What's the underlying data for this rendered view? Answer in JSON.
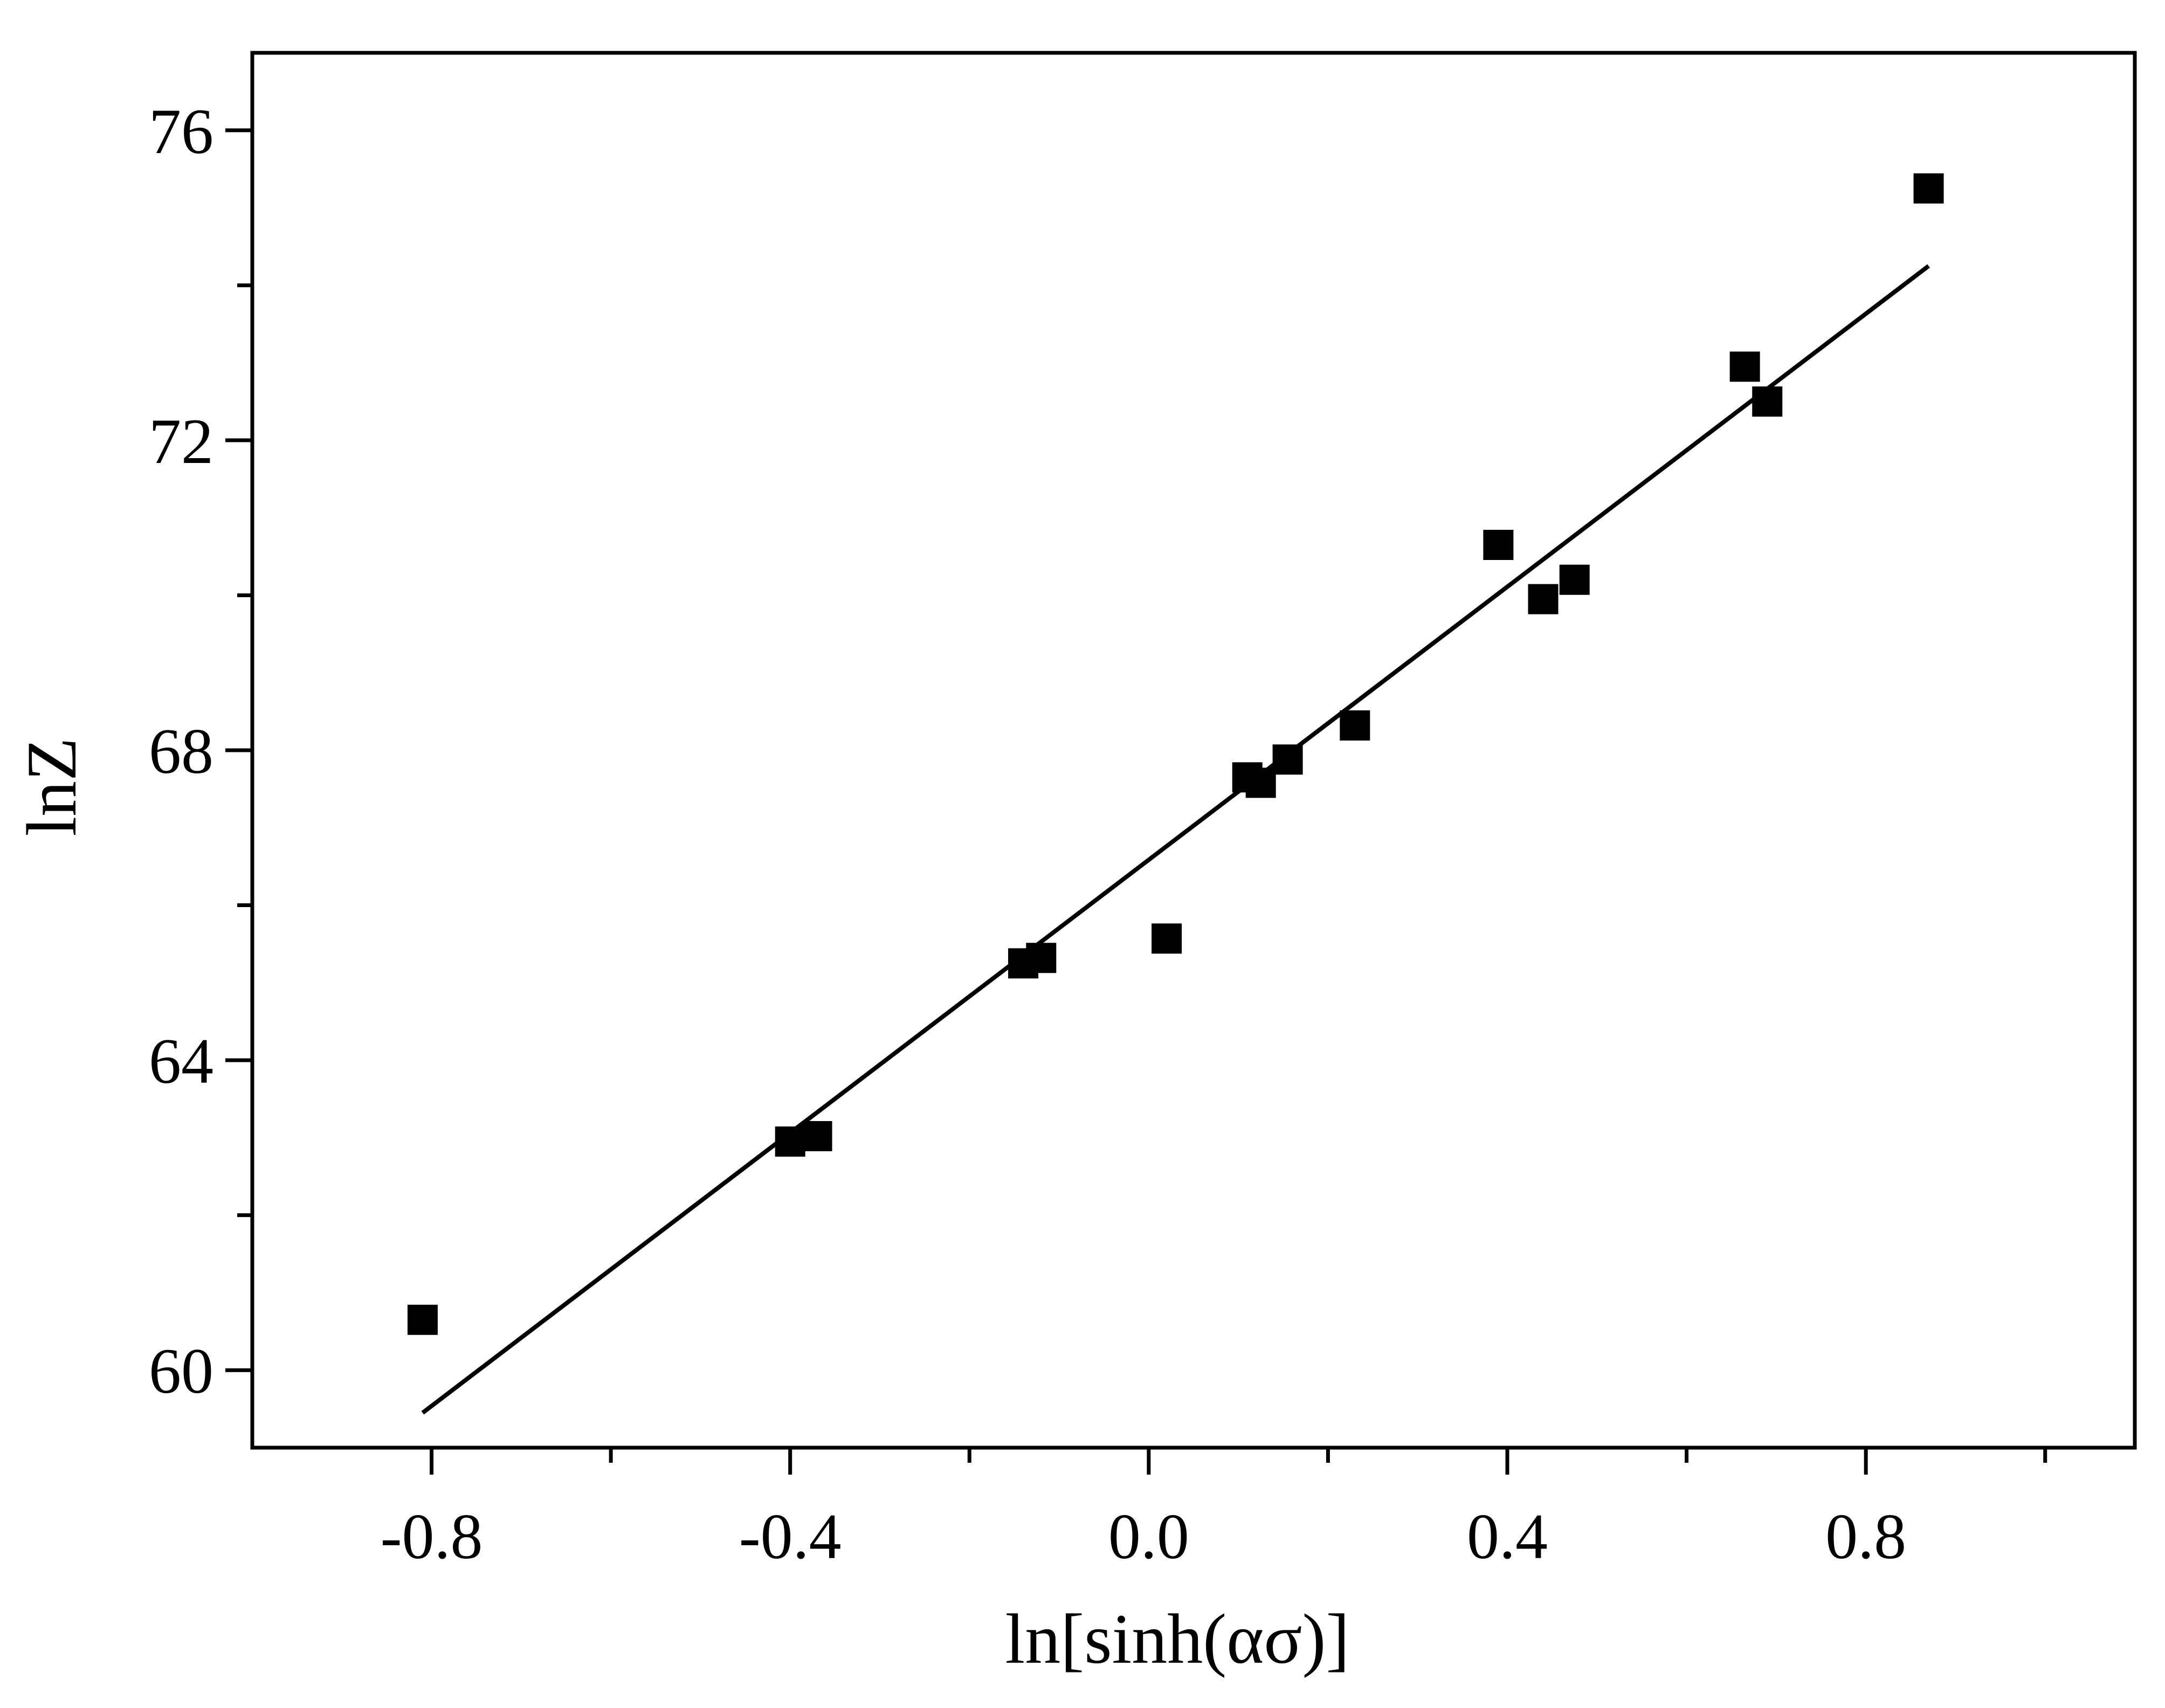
{
  "chart_data": {
    "type": "scatter",
    "title": "",
    "xlabel": "ln[sinh(ασ)]",
    "ylabel": "lnZ",
    "xlim": [
      -1.0,
      1.1
    ],
    "ylim": [
      59.0,
      77.0
    ],
    "x_ticks": [
      -0.8,
      -0.4,
      0.0,
      0.4,
      0.8
    ],
    "x_tick_labels": [
      "-0.8",
      "-0.4",
      "0.0",
      "0.4",
      "0.8"
    ],
    "x_minor_ticks": [
      -0.6,
      -0.2,
      0.2,
      0.6,
      1.0
    ],
    "y_ticks": [
      60,
      64,
      68,
      72,
      76
    ],
    "y_tick_labels": [
      "60",
      "64",
      "68",
      "72",
      "76"
    ],
    "y_minor_ticks": [
      62,
      66,
      70,
      74
    ],
    "grid": false,
    "marker_color": "#000000",
    "series": [
      {
        "kind": "points",
        "marker": "square",
        "points": [
          {
            "x": -0.81,
            "y": 60.65
          },
          {
            "x": -0.4,
            "y": 62.95
          },
          {
            "x": -0.37,
            "y": 63.02
          },
          {
            "x": -0.14,
            "y": 65.25
          },
          {
            "x": -0.12,
            "y": 65.32
          },
          {
            "x": 0.02,
            "y": 65.57
          },
          {
            "x": 0.11,
            "y": 67.65
          },
          {
            "x": 0.125,
            "y": 67.58
          },
          {
            "x": 0.155,
            "y": 67.88
          },
          {
            "x": 0.23,
            "y": 68.32
          },
          {
            "x": 0.39,
            "y": 70.65
          },
          {
            "x": 0.44,
            "y": 69.95
          },
          {
            "x": 0.475,
            "y": 70.2
          },
          {
            "x": 0.665,
            "y": 72.95
          },
          {
            "x": 0.69,
            "y": 72.5
          },
          {
            "x": 0.87,
            "y": 75.25
          }
        ]
      },
      {
        "kind": "fit-line",
        "line": [
          {
            "x": -0.81,
            "y": 59.45
          },
          {
            "x": 0.87,
            "y": 74.25
          }
        ]
      }
    ]
  }
}
